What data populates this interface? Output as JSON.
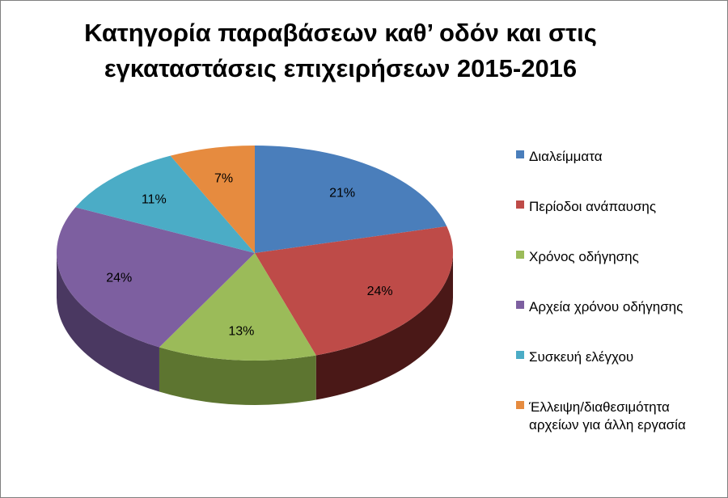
{
  "chart_data": {
    "type": "pie",
    "title": "Κατηγορία παραβάσεων καθ’ οδόν και στις εγκαταστάσεις επιχειρήσεων 2015-2016",
    "title_lines": [
      "Κατηγορία παραβάσεων καθ’ οδόν και στις",
      "εγκαταστάσεις επιχειρήσεων 2015-2016"
    ],
    "style": "3d",
    "legend_position": "right",
    "slices": [
      {
        "label": "Διαλείμματα",
        "value": 21,
        "display": "21%",
        "color": "#4a7ebb",
        "side_color": "#2c4d74"
      },
      {
        "label": "Περίοδοι ανάπαυσης",
        "value": 24,
        "display": "24%",
        "color": "#be4b48",
        "side_color": "#4a1817"
      },
      {
        "label": "Χρόνος οδήγησης",
        "value": 13,
        "display": "13%",
        "color": "#9bbb59",
        "side_color": "#5d7530"
      },
      {
        "label": "Αρχεία χρόνου οδήγησης",
        "value": 24,
        "display": "24%",
        "color": "#7d5fa0",
        "side_color": "#4a3861"
      },
      {
        "label": "Συσκευή ελέγχου",
        "value": 11,
        "display": "11%",
        "color": "#4bacc6",
        "side_color": "#2b6d80"
      },
      {
        "label": "Έλλειψη/διαθεσιμότητα αρχείων για άλλη εργασία",
        "label_lines": [
          "Έλλειψη/διαθεσιμότητα",
          "αρχείων για άλλη εργασία"
        ],
        "value": 7,
        "display": "7%",
        "color": "#e68b3f",
        "side_color": "#9a5820"
      }
    ]
  }
}
